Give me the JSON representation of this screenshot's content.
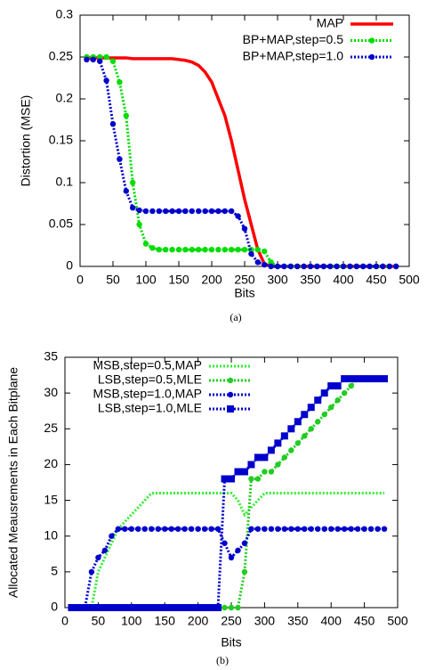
{
  "chart_data": [
    {
      "type": "line",
      "caption": "(a)",
      "x_label": "Bits",
      "y_label": "Distortion (MSE)",
      "xlim": [
        0,
        500
      ],
      "ylim": [
        0,
        0.3
      ],
      "xticks": [
        0,
        50,
        100,
        150,
        200,
        250,
        300,
        350,
        400,
        450,
        500
      ],
      "yticks": [
        0,
        0.05,
        0.1,
        0.15,
        0.2,
        0.25,
        0.3
      ],
      "legend": "upper right",
      "x": [
        10,
        20,
        30,
        40,
        50,
        60,
        70,
        80,
        90,
        100,
        110,
        120,
        130,
        140,
        150,
        160,
        170,
        180,
        190,
        200,
        210,
        220,
        230,
        240,
        250,
        260,
        270,
        280,
        290,
        300,
        310,
        320,
        330,
        340,
        350,
        360,
        370,
        380,
        390,
        400,
        410,
        420,
        430,
        440,
        450,
        460,
        470,
        480
      ],
      "series": [
        {
          "name": "MAP",
          "color": "#ff0000",
          "dash": "solid",
          "marker": "none",
          "values": [
            0.249,
            0.249,
            0.249,
            0.249,
            0.249,
            0.249,
            0.249,
            0.248,
            0.248,
            0.248,
            0.248,
            0.248,
            0.248,
            0.248,
            0.247,
            0.246,
            0.244,
            0.24,
            0.232,
            0.22,
            0.2,
            0.18,
            0.15,
            0.115,
            0.08,
            0.05,
            0.02,
            0.003,
            0,
            0,
            0,
            0,
            0,
            0,
            0,
            0,
            0,
            0,
            0,
            0,
            0,
            0,
            0,
            0,
            0,
            0,
            0,
            0
          ]
        },
        {
          "name": "BP+MAP,step=0.5",
          "color": "#00dd00",
          "dash": "dotted",
          "marker": "circle",
          "values": [
            0.25,
            0.25,
            0.25,
            0.25,
            0.245,
            0.22,
            0.18,
            0.1,
            0.05,
            0.027,
            0.022,
            0.02,
            0.02,
            0.02,
            0.02,
            0.02,
            0.02,
            0.02,
            0.02,
            0.02,
            0.02,
            0.02,
            0.02,
            0.02,
            0.02,
            0.02,
            0.02,
            0.018,
            0.005,
            0,
            0,
            0,
            0,
            0,
            0,
            0,
            0,
            0,
            0,
            0,
            0,
            0,
            0,
            0,
            0,
            0,
            0,
            0
          ]
        },
        {
          "name": "BP+MAP,step=1.0",
          "color": "#0000cc",
          "dash": "dotted",
          "marker": "circle",
          "values": [
            0.247,
            0.247,
            0.245,
            0.222,
            0.17,
            0.128,
            0.09,
            0.07,
            0.067,
            0.066,
            0.066,
            0.066,
            0.066,
            0.066,
            0.066,
            0.066,
            0.066,
            0.066,
            0.066,
            0.066,
            0.066,
            0.066,
            0.066,
            0.06,
            0.045,
            0.015,
            0.005,
            0.002,
            0,
            0,
            0,
            0,
            0,
            0,
            0,
            0,
            0,
            0,
            0,
            0,
            0,
            0,
            0,
            0,
            0,
            0,
            0,
            0
          ]
        }
      ]
    },
    {
      "type": "line",
      "caption": "(b)",
      "x_label": "Bits",
      "y_label": "Allocated Meausrements in Each Bitplane",
      "xlim": [
        0,
        500
      ],
      "ylim": [
        0,
        35
      ],
      "xticks": [
        0,
        50,
        100,
        150,
        200,
        250,
        300,
        350,
        400,
        450,
        500
      ],
      "yticks": [
        0,
        5,
        10,
        15,
        20,
        25,
        30,
        35
      ],
      "legend": "upper left",
      "x": [
        10,
        20,
        30,
        40,
        50,
        60,
        70,
        80,
        90,
        100,
        110,
        120,
        130,
        140,
        150,
        160,
        170,
        180,
        190,
        200,
        210,
        220,
        230,
        240,
        250,
        260,
        270,
        280,
        290,
        300,
        310,
        320,
        330,
        340,
        350,
        360,
        370,
        380,
        390,
        400,
        410,
        420,
        430,
        440,
        450,
        460,
        470,
        480
      ],
      "series": [
        {
          "name": "MSB,step=0.5,MAP",
          "color": "#33ee33",
          "dash": "dotted",
          "marker": "none",
          "values": [
            0,
            0,
            0,
            0,
            5,
            7,
            9,
            11,
            12,
            13,
            14,
            15,
            16,
            16,
            16,
            16,
            16,
            16,
            16,
            16,
            16,
            16,
            16,
            16,
            16,
            15,
            13,
            14,
            15,
            16,
            16,
            16,
            16,
            16,
            16,
            16,
            16,
            16,
            16,
            16,
            16,
            16,
            16,
            16,
            16,
            16,
            16,
            16
          ]
        },
        {
          "name": "LSB,step=0.5,MLE",
          "color": "#22cc22",
          "dash": "dotted",
          "marker": "circle",
          "values": [
            0,
            0,
            0,
            0,
            0,
            0,
            0,
            0,
            0,
            0,
            0,
            0,
            0,
            0,
            0,
            0,
            0,
            0,
            0,
            0,
            0,
            0,
            0,
            0,
            0,
            0,
            5,
            18,
            18,
            19,
            19,
            20,
            21,
            22,
            23,
            24,
            25,
            26,
            27,
            28,
            29,
            30,
            31,
            32,
            32,
            32,
            32,
            32
          ]
        },
        {
          "name": "MSB,step=1.0,MAP",
          "color": "#0000cc",
          "dash": "dotted",
          "marker": "circle",
          "values": [
            0,
            0,
            0,
            5,
            7,
            8,
            10,
            11,
            11,
            11,
            11,
            11,
            11,
            11,
            11,
            11,
            11,
            11,
            11,
            11,
            11,
            11,
            11,
            9,
            7,
            8,
            9,
            11,
            11,
            11,
            11,
            11,
            11,
            11,
            11,
            11,
            11,
            11,
            11,
            11,
            11,
            11,
            11,
            11,
            11,
            11,
            11,
            11
          ]
        },
        {
          "name": "LSB,step=1.0,MLE",
          "color": "#0000cc",
          "dash": "dotted",
          "marker": "square",
          "values": [
            0,
            0,
            0,
            0,
            0,
            0,
            0,
            0,
            0,
            0,
            0,
            0,
            0,
            0,
            0,
            0,
            0,
            0,
            0,
            0,
            0,
            0,
            0,
            18,
            18,
            19,
            19,
            20,
            21,
            21,
            22,
            23,
            24,
            25,
            26,
            27,
            28,
            29,
            30,
            31,
            31,
            32,
            32,
            32,
            32,
            32,
            32,
            32
          ]
        }
      ]
    }
  ]
}
